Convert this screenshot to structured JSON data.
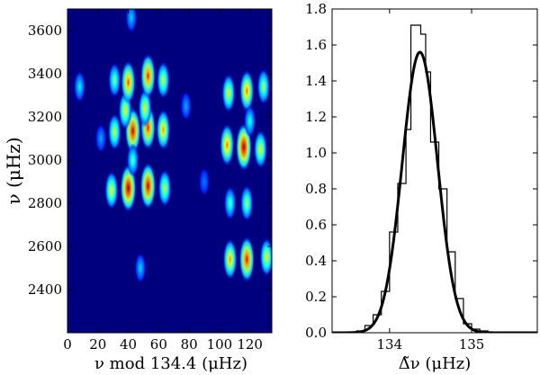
{
  "chart_data": [
    {
      "type": "heatmap",
      "title": "",
      "xlabel": "ν mod 134.4 (μHz)",
      "ylabel": "ν (μHz)",
      "xlim": [
        0,
        134.4
      ],
      "ylim": [
        2200,
        3700
      ],
      "xticks": [
        0,
        20,
        40,
        60,
        80,
        100,
        120
      ],
      "yticks": [
        2400,
        2600,
        2800,
        3000,
        3200,
        3400,
        3600
      ],
      "colormap": "jet",
      "background": "#00007f",
      "peaks": [
        {
          "x": 40,
          "y": 2870,
          "strength": 1.0
        },
        {
          "x": 53,
          "y": 2880,
          "strength": 0.95
        },
        {
          "x": 29,
          "y": 2860,
          "strength": 0.6
        },
        {
          "x": 64,
          "y": 2870,
          "strength": 0.55
        },
        {
          "x": 43,
          "y": 3135,
          "strength": 0.95
        },
        {
          "x": 53,
          "y": 3150,
          "strength": 0.85
        },
        {
          "x": 63,
          "y": 3140,
          "strength": 0.7
        },
        {
          "x": 31,
          "y": 3130,
          "strength": 0.55
        },
        {
          "x": 38,
          "y": 3230,
          "strength": 0.6
        },
        {
          "x": 51,
          "y": 3240,
          "strength": 0.6
        },
        {
          "x": 40,
          "y": 3360,
          "strength": 0.8
        },
        {
          "x": 53,
          "y": 3390,
          "strength": 0.85
        },
        {
          "x": 63,
          "y": 3370,
          "strength": 0.55
        },
        {
          "x": 31,
          "y": 3370,
          "strength": 0.45
        },
        {
          "x": 43,
          "y": 3000,
          "strength": 0.4
        },
        {
          "x": 116,
          "y": 3060,
          "strength": 1.0
        },
        {
          "x": 105,
          "y": 3070,
          "strength": 0.75
        },
        {
          "x": 127,
          "y": 3050,
          "strength": 0.6
        },
        {
          "x": 118,
          "y": 3320,
          "strength": 0.75
        },
        {
          "x": 106,
          "y": 3310,
          "strength": 0.6
        },
        {
          "x": 129,
          "y": 3340,
          "strength": 0.5
        },
        {
          "x": 118,
          "y": 2540,
          "strength": 0.9
        },
        {
          "x": 107,
          "y": 2540,
          "strength": 0.7
        },
        {
          "x": 131,
          "y": 2550,
          "strength": 0.6
        },
        {
          "x": 118,
          "y": 2800,
          "strength": 0.5
        },
        {
          "x": 107,
          "y": 2800,
          "strength": 0.4
        },
        {
          "x": 120,
          "y": 3180,
          "strength": 0.35
        },
        {
          "x": 8,
          "y": 3340,
          "strength": 0.3
        },
        {
          "x": 48,
          "y": 2500,
          "strength": 0.25
        },
        {
          "x": 42,
          "y": 3660,
          "strength": 0.25
        },
        {
          "x": 78,
          "y": 3250,
          "strength": 0.2
        },
        {
          "x": 22,
          "y": 3100,
          "strength": 0.2
        },
        {
          "x": 90,
          "y": 2900,
          "strength": 0.15
        }
      ]
    },
    {
      "type": "histogram",
      "title": "",
      "xlabel": "Δ̃ν (μHz)",
      "ylabel": "",
      "xlim": [
        133.3,
        135.8
      ],
      "ylim": [
        0.0,
        1.8
      ],
      "xticks": [
        134,
        135
      ],
      "yticks": [
        0.0,
        0.2,
        0.4,
        0.6,
        0.8,
        1.0,
        1.2,
        1.4,
        1.6,
        1.8
      ],
      "ytick_labels": [
        "0.0",
        "0.2",
        "0.4",
        "0.6",
        "0.8",
        "1.0",
        "1.2",
        "1.4",
        "1.6",
        "1.8"
      ],
      "bin_edges": [
        133.6,
        133.7,
        133.8,
        133.9,
        134.0,
        134.1,
        134.2,
        134.26,
        134.32,
        134.38,
        134.44,
        134.5,
        134.6,
        134.7,
        134.8,
        134.9,
        135.0,
        135.1,
        135.2
      ],
      "bin_values": [
        0.01,
        0.04,
        0.1,
        0.23,
        0.56,
        0.83,
        1.13,
        1.71,
        1.71,
        1.66,
        1.45,
        1.06,
        0.8,
        0.45,
        0.19,
        0.05,
        0.02,
        0.01
      ],
      "fit": {
        "type": "gaussian",
        "mean": 134.37,
        "sigma": 0.215,
        "amplitude": 1.56
      }
    }
  ]
}
